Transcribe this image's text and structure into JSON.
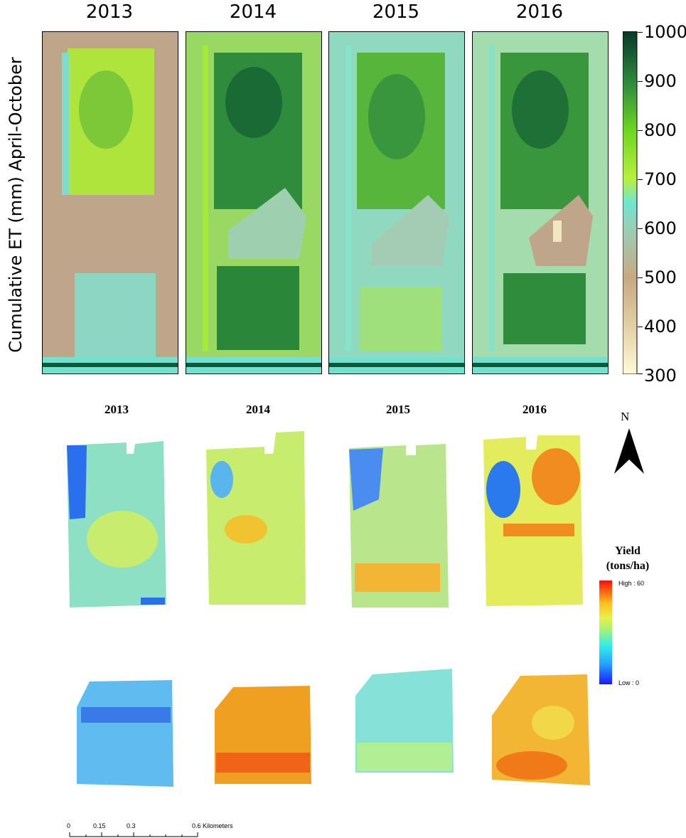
{
  "et_panel": {
    "years": [
      "2013",
      "2014",
      "2015",
      "2016"
    ],
    "ylabel": "Cumulative ET (mm) April-October",
    "colorbar": {
      "ticks": [
        "1000",
        "900",
        "800",
        "700",
        "600",
        "500",
        "400",
        "300"
      ],
      "range": [
        300,
        1000
      ],
      "colors": [
        "#fffbd6",
        "#d6b48a",
        "#bfa58a",
        "#8fd5c0",
        "#6fe6d2",
        "#b9f03e",
        "#6ed622",
        "#3aa63a",
        "#12713a",
        "#083d2b"
      ]
    },
    "field_colors": {
      "2013": {
        "base": "#bfa58a",
        "north": "#aee43c",
        "south": "#8ed6c4",
        "border": "#74e0d0"
      },
      "2014": {
        "base": "#9ad864",
        "north": "#2e8c3c",
        "south": "#2a873a",
        "border": "#a4ea3a"
      },
      "2015": {
        "base": "#90d8c0",
        "north": "#58b53c",
        "south": "#9fe07c",
        "border": "#86e2c8"
      },
      "2016": {
        "base": "#a4dcae",
        "north": "#3a963c",
        "south": "#2e8c3c",
        "border": "#86e2c8"
      }
    }
  },
  "yield_panel": {
    "years": [
      "2013",
      "2014",
      "2015",
      "2016"
    ],
    "north_label": "N",
    "legend": {
      "title_line1": "Yield",
      "title_line2": "(tons/ha)",
      "high_label": "High : 60",
      "low_label": "Low : 0",
      "colors": [
        "#1a1aff",
        "#24a6ff",
        "#33f0e6",
        "#a6f07a",
        "#e8f04a",
        "#ffc020",
        "#ff6010",
        "#ee1010"
      ]
    },
    "field_colors": {
      "north": {
        "2013": "#8ee0c4",
        "2014": "#c8ec6e",
        "2015": "#b9e68c",
        "2016": "#e2ec5c"
      },
      "south": {
        "2013": "#60bcf0",
        "2014": "#f0a020",
        "2015": "#86e2d8",
        "2016": "#f2b634"
      }
    }
  },
  "scale_bar": {
    "labels": [
      "0",
      "0.15",
      "0.3",
      "0.6 Kilometers"
    ]
  }
}
